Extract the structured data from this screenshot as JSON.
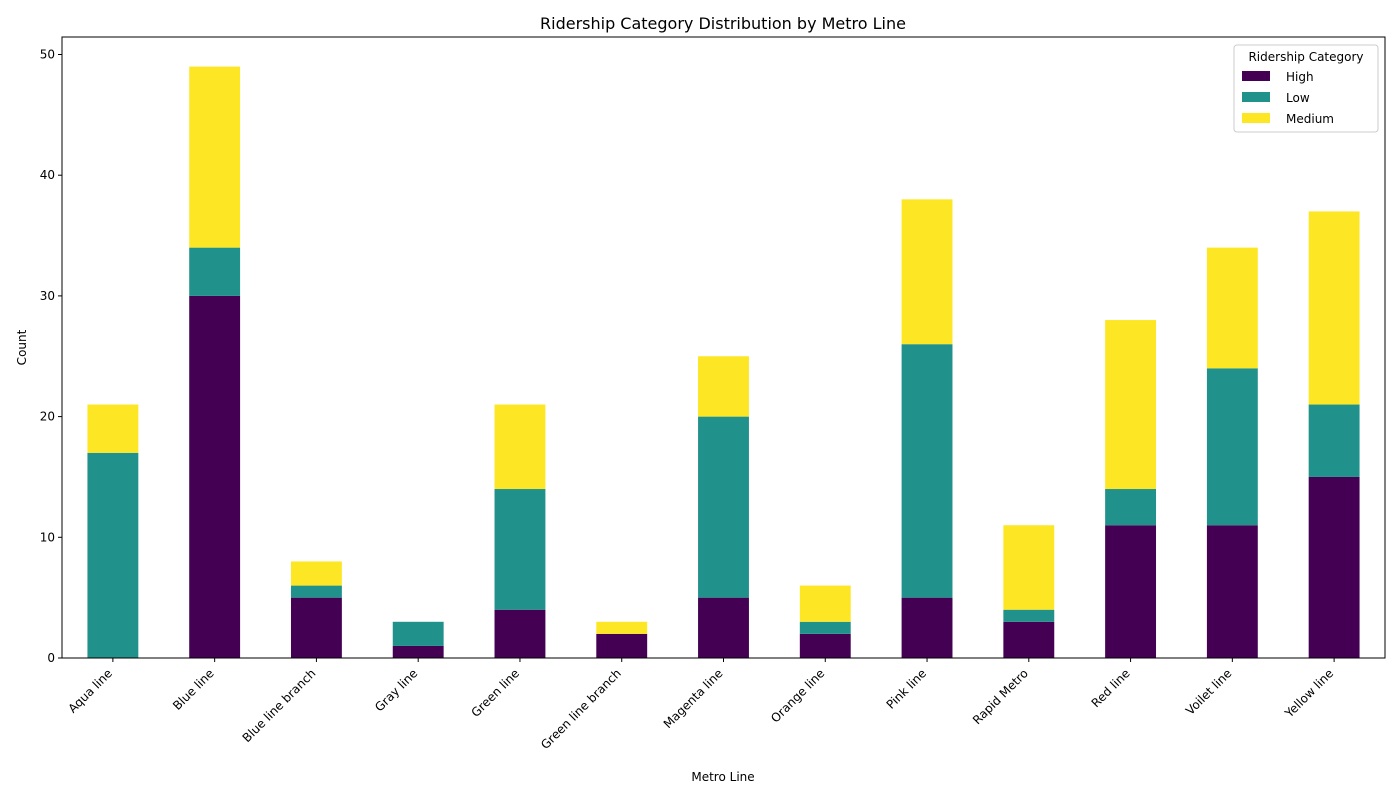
{
  "chart_data": {
    "type": "bar",
    "stacked": true,
    "title": "Ridership Category Distribution by Metro Line",
    "xlabel": "Metro Line",
    "ylabel": "Count",
    "ylim": [
      0,
      51.45
    ],
    "yticks": [
      0,
      10,
      20,
      30,
      40,
      50
    ],
    "grid": false,
    "legend_position": "top-right",
    "legend_title": "Ridership Category",
    "categories": [
      "Aqua line",
      "Blue line",
      "Blue line branch",
      "Gray line",
      "Green line",
      "Green line branch",
      "Magenta line",
      "Orange line",
      "Pink line",
      "Rapid Metro",
      "Red line",
      "Voilet line",
      "Yellow line"
    ],
    "series": [
      {
        "name": "High",
        "color": "#440154",
        "values": [
          0,
          30,
          5,
          1,
          4,
          2,
          5,
          2,
          5,
          3,
          11,
          11,
          15
        ]
      },
      {
        "name": "Low",
        "color": "#21918c",
        "values": [
          17,
          4,
          1,
          2,
          10,
          0,
          15,
          1,
          21,
          1,
          3,
          13,
          6
        ]
      },
      {
        "name": "Medium",
        "color": "#fde725",
        "values": [
          4,
          15,
          2,
          0,
          7,
          1,
          5,
          3,
          12,
          7,
          14,
          10,
          16
        ]
      }
    ]
  }
}
